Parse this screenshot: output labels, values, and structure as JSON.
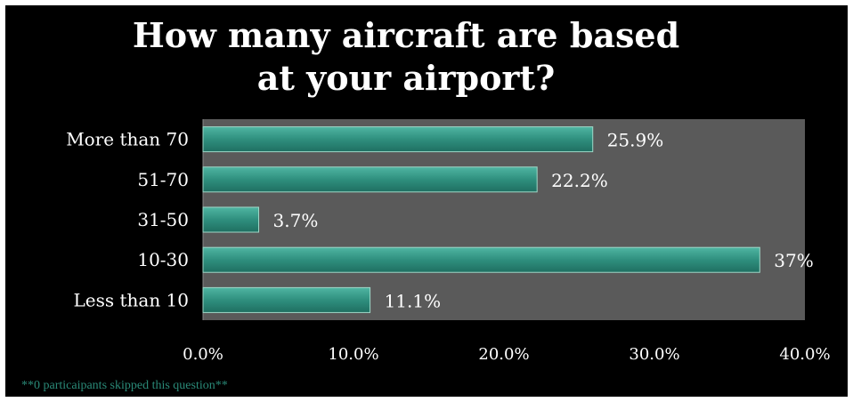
{
  "chart_data": {
    "type": "bar",
    "orientation": "horizontal",
    "title_lines": [
      "How many aircraft are based",
      "at your airport?"
    ],
    "categories": [
      "More than 70",
      "51-70",
      "31-50",
      "10-30",
      "Less than 10"
    ],
    "values": [
      25.9,
      22.2,
      3.7,
      37.0,
      11.1
    ],
    "value_labels": [
      "25.9%",
      "22.2%",
      "3.7%",
      "37%",
      "11.1%"
    ],
    "xlim": [
      0,
      40
    ],
    "xticks": [
      0,
      10,
      20,
      30,
      40
    ],
    "xtick_labels": [
      "0.0%",
      "10.0%",
      "20.0%",
      "30.0%",
      "40.0%"
    ],
    "xlabel": "",
    "ylabel": "",
    "grid": false,
    "legend": "none",
    "colors": {
      "bar": "#2f8f7e",
      "bar_border": "#9fd8c8",
      "plot_bg": "#5a5a5a",
      "background": "#000000",
      "text": "#ffffff",
      "footnote": "#2a8a78"
    }
  },
  "footnote": "**0 particaipants skipped this question**"
}
